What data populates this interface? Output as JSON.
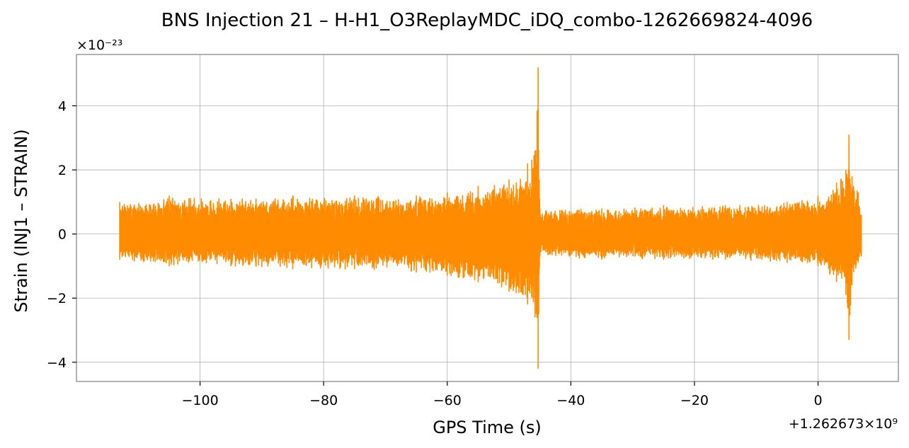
{
  "chart_data": {
    "type": "line",
    "title": "BNS Injection 21 – H-H1_O3ReplayMDC_iDQ_combo-1262669824-4096",
    "xlabel": "GPS Time (s)",
    "ylabel": "Strain (INJ1 – STRAIN)",
    "x_offset_label": "+1.262673×10⁹",
    "y_scale_label": "×10⁻²³",
    "xlim": [
      -120,
      13
    ],
    "ylim": [
      -4.6,
      5.6
    ],
    "x_ticks": [
      -100,
      -80,
      -60,
      -40,
      -20,
      0
    ],
    "x_tick_labels": [
      "−100",
      "−80",
      "−60",
      "−40",
      "−20",
      "0"
    ],
    "y_ticks": [
      -4,
      -2,
      0,
      2,
      4
    ],
    "y_tick_labels": [
      "−4",
      "−2",
      "0",
      "2",
      "4"
    ],
    "grid": true,
    "color": "#ff8c00",
    "series": [
      {
        "envelope": [
          {
            "x": -113,
            "upper": 1.0,
            "lower": -0.8
          },
          {
            "x": -105,
            "upper": 1.2,
            "lower": -1.0
          },
          {
            "x": -95,
            "upper": 1.1,
            "lower": -1.0
          },
          {
            "x": -85,
            "upper": 1.2,
            "lower": -1.1
          },
          {
            "x": -75,
            "upper": 1.2,
            "lower": -1.1
          },
          {
            "x": -65,
            "upper": 1.2,
            "lower": -1.2
          },
          {
            "x": -60,
            "upper": 1.3,
            "lower": -1.3
          },
          {
            "x": -55,
            "upper": 1.5,
            "lower": -1.5
          },
          {
            "x": -50,
            "upper": 1.7,
            "lower": -1.8
          },
          {
            "x": -47,
            "upper": 2.2,
            "lower": -2.2
          },
          {
            "x": -45.8,
            "upper": 2.6,
            "lower": -2.6
          },
          {
            "x": -45.3,
            "upper": 5.2,
            "lower": -4.2
          },
          {
            "x": -45,
            "upper": 0.8,
            "lower": -0.7
          },
          {
            "x": -35,
            "upper": 0.8,
            "lower": -0.8
          },
          {
            "x": -25,
            "upper": 0.9,
            "lower": -0.8
          },
          {
            "x": -15,
            "upper": 0.9,
            "lower": -0.8
          },
          {
            "x": -5,
            "upper": 1.0,
            "lower": -0.9
          },
          {
            "x": 0,
            "upper": 1.2,
            "lower": -1.0
          },
          {
            "x": 3,
            "upper": 1.6,
            "lower": -1.5
          },
          {
            "x": 4.5,
            "upper": 2.0,
            "lower": -1.9
          },
          {
            "x": 5,
            "upper": 3.1,
            "lower": -3.3
          },
          {
            "x": 5.5,
            "upper": 1.8,
            "lower": -1.6
          },
          {
            "x": 6.5,
            "upper": 1.3,
            "lower": -0.9
          },
          {
            "x": 7,
            "upper": 0.6,
            "lower": -0.7
          }
        ]
      }
    ]
  }
}
